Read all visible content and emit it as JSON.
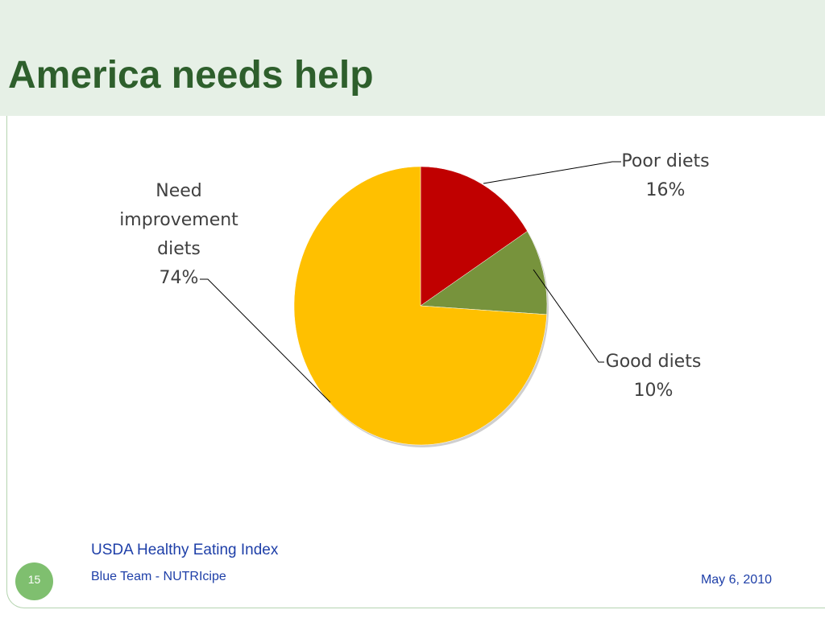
{
  "slide": {
    "title": "America needs help",
    "source": "USDA Healthy Eating Index",
    "page_number": "15",
    "footer_team": "Blue Team - NUTRIcipe",
    "footer_date": "May 6, 2010"
  },
  "chart_data": {
    "type": "pie",
    "start_angle_deg": 0,
    "direction": "clockwise",
    "slices": [
      {
        "name": "Poor diets",
        "value": 16,
        "label": "16%",
        "color": "#c00000"
      },
      {
        "name": "Good diets",
        "value": 10,
        "label": "10%",
        "color": "#77933c"
      },
      {
        "name": "Need improvement diets",
        "value": 74,
        "label": "74%",
        "color": "#ffc000"
      }
    ],
    "label_lines": [
      [
        "Poor diets",
        "16%"
      ],
      [
        "Good diets",
        "10%"
      ],
      [
        "Need",
        "improvement",
        "diets",
        "74%"
      ]
    ]
  }
}
